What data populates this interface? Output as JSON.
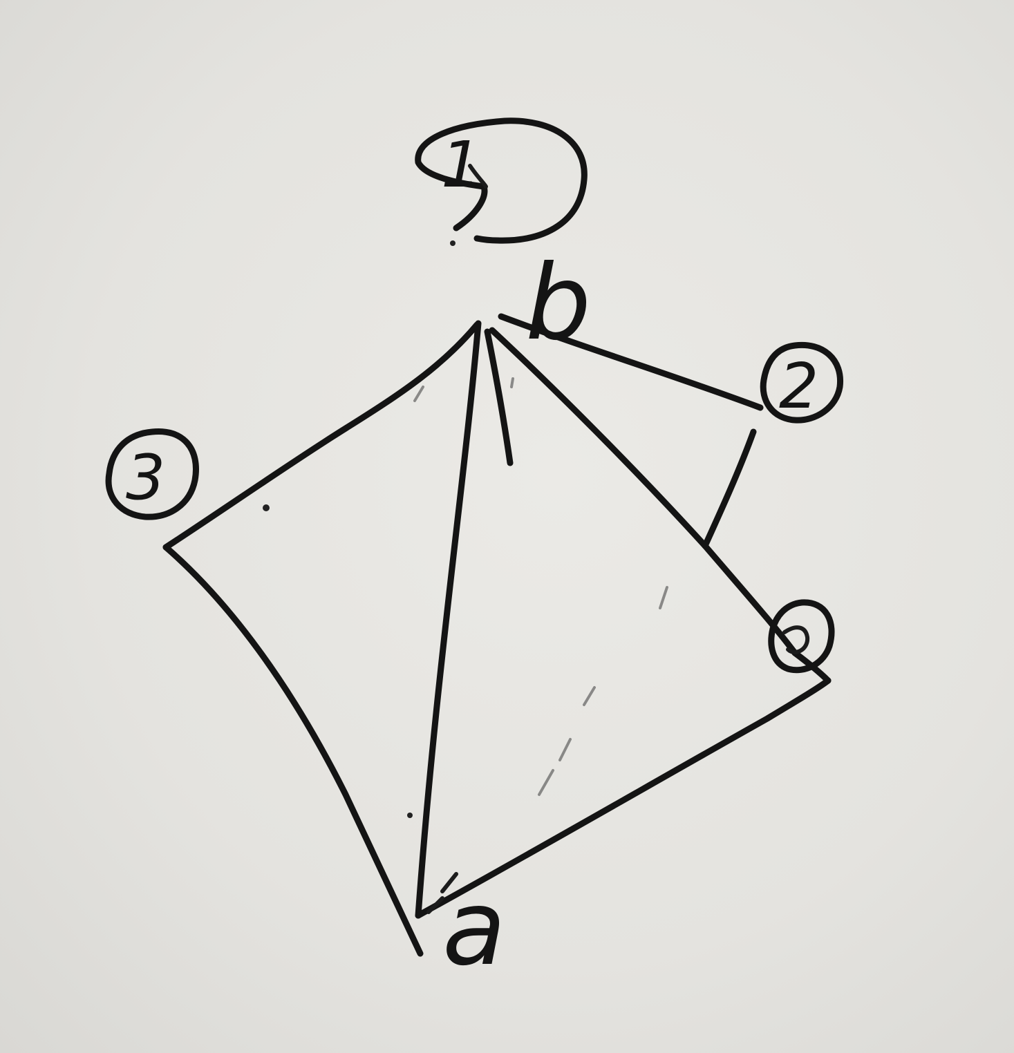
{
  "diagram": {
    "vertex_labels": {
      "a": "a",
      "b": "b"
    },
    "node_markers": {
      "top": "1",
      "right_upper": "2",
      "left": "3",
      "right_lower": ""
    },
    "ink_color": "#141414",
    "paper_color": "#e6e5e1"
  }
}
